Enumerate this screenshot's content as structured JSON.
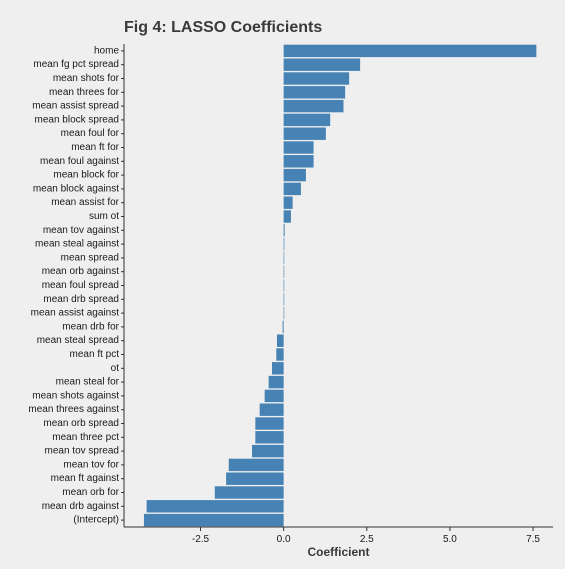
{
  "chart_data": {
    "type": "bar",
    "orientation": "horizontal",
    "title": "Fig 4: LASSO Coefficients",
    "xlabel": "Coefficient",
    "ylabel": "",
    "xlim": [
      -4.8,
      8.1
    ],
    "xticks": [
      -2.5,
      0.0,
      2.5,
      5.0,
      7.5
    ],
    "xtick_labels": [
      "-2.5",
      "0.0",
      "2.5",
      "5.0",
      "7.5"
    ],
    "grid": false,
    "bar_color": "#4682b4",
    "categories": [
      "home",
      "mean fg pct spread",
      "mean shots for",
      "mean threes for",
      "mean assist spread",
      "mean block spread",
      "mean foul for",
      "mean ft for",
      "mean foul against",
      "mean block for",
      "mean block against",
      "mean assist for",
      "sum ot",
      "mean tov against",
      "mean steal against",
      "mean spread",
      "mean orb against",
      "mean foul spread",
      "mean drb spread",
      "mean assist against",
      "mean drb for",
      "mean steal spread",
      "mean ft pct",
      "ot",
      "mean steal for",
      "mean shots against",
      "mean threes against",
      "mean orb spread",
      "mean three pct",
      "mean tov spread",
      "mean tov for",
      "mean ft against",
      "mean orb for",
      "mean drb against",
      "(Intercept)"
    ],
    "values": [
      7.6,
      2.3,
      1.97,
      1.85,
      1.8,
      1.4,
      1.27,
      0.9,
      0.9,
      0.67,
      0.52,
      0.27,
      0.22,
      0.03,
      0.02,
      0.01,
      0.01,
      0.01,
      0.01,
      0.01,
      -0.03,
      -0.2,
      -0.22,
      -0.35,
      -0.45,
      -0.57,
      -0.72,
      -0.85,
      -0.85,
      -0.95,
      -1.65,
      -1.73,
      -2.07,
      -4.12,
      -4.2
    ]
  }
}
